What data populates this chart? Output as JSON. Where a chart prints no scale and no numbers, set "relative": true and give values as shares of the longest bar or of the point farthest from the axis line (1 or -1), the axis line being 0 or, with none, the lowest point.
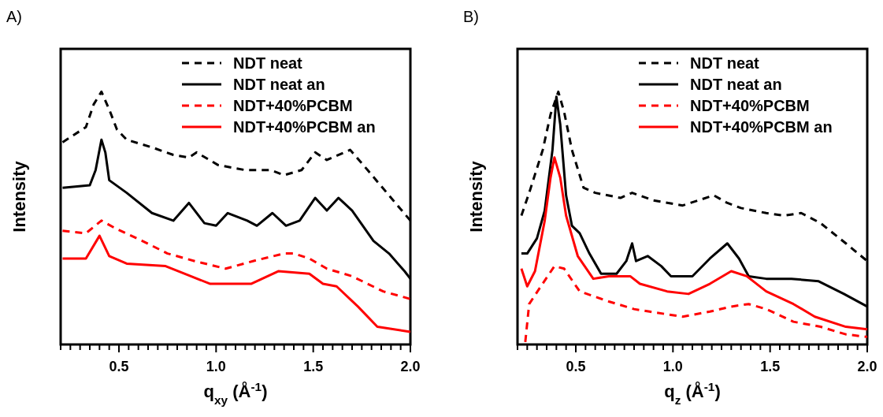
{
  "chart_data": [
    {
      "type": "line",
      "title": "A)",
      "xlabel": "q$_{xy}$ (Å$^{-1}$)",
      "ylabel": "Intensity",
      "relative": true,
      "legend": "top right",
      "xlim": [
        0.2,
        2.0
      ],
      "xticks": [
        {
          "value": 0.2,
          "label": null
        },
        {
          "value": 0.25,
          "label": null
        },
        {
          "value": 0.3,
          "label": null
        },
        {
          "value": 0.35,
          "label": null
        },
        {
          "value": 0.4,
          "label": null
        },
        {
          "value": 0.45,
          "label": null
        },
        {
          "value": 0.5,
          "label": "0.5"
        },
        {
          "value": 0.55,
          "label": null
        },
        {
          "value": 0.6,
          "label": null
        },
        {
          "value": 0.65,
          "label": null
        },
        {
          "value": 0.7,
          "label": null
        },
        {
          "value": 0.75,
          "label": null
        },
        {
          "value": 0.8,
          "label": null
        },
        {
          "value": 0.85,
          "label": null
        },
        {
          "value": 0.9,
          "label": null
        },
        {
          "value": 0.95,
          "label": null
        },
        {
          "value": 1.0,
          "label": "1.0"
        },
        {
          "value": 1.05,
          "label": null
        },
        {
          "value": 1.1,
          "label": null
        },
        {
          "value": 1.15,
          "label": null
        },
        {
          "value": 1.2,
          "label": null
        },
        {
          "value": 1.25,
          "label": null
        },
        {
          "value": 1.3,
          "label": null
        },
        {
          "value": 1.35,
          "label": null
        },
        {
          "value": 1.4,
          "label": null
        },
        {
          "value": 1.45,
          "label": null
        },
        {
          "value": 1.5,
          "label": "1.5"
        },
        {
          "value": 1.55,
          "label": null
        },
        {
          "value": 1.6,
          "label": null
        },
        {
          "value": 1.65,
          "label": null
        },
        {
          "value": 1.7,
          "label": null
        },
        {
          "value": 1.75,
          "label": null
        },
        {
          "value": 1.8,
          "label": null
        },
        {
          "value": 1.85,
          "label": null
        },
        {
          "value": 1.9,
          "label": null
        },
        {
          "value": 1.95,
          "label": null
        },
        {
          "value": 2.0,
          "label": "2.0"
        }
      ],
      "series": [
        {
          "name": "NDT neat",
          "color": "#000000",
          "line_style": "dashed",
          "x": [
            0.21,
            0.33,
            0.37,
            0.41,
            0.45,
            0.49,
            0.54,
            0.67,
            0.78,
            0.86,
            0.9,
            1.01,
            1.15,
            1.28,
            1.35,
            1.44,
            1.51,
            1.57,
            1.69,
            1.78,
            1.89,
            2.0
          ],
          "values": [
            0.8,
            0.86,
            0.95,
            1,
            0.93,
            0.85,
            0.81,
            0.78,
            0.75,
            0.74,
            0.76,
            0.71,
            0.69,
            0.69,
            0.67,
            0.69,
            0.76,
            0.73,
            0.77,
            0.69,
            0.59,
            0.49
          ]
        },
        {
          "name": "NDT neat an",
          "color": "#000000",
          "line_style": "solid",
          "x": [
            0.21,
            0.35,
            0.38,
            0.41,
            0.43,
            0.45,
            0.54,
            0.67,
            0.78,
            0.86,
            0.94,
            1.0,
            1.06,
            1.16,
            1.21,
            1.29,
            1.36,
            1.43,
            1.51,
            1.57,
            1.63,
            1.7,
            1.81,
            1.89,
            1.97,
            2.0
          ],
          "values": [
            0.62,
            0.63,
            0.69,
            0.81,
            0.76,
            0.65,
            0.6,
            0.52,
            0.49,
            0.56,
            0.48,
            0.47,
            0.52,
            0.49,
            0.47,
            0.52,
            0.47,
            0.49,
            0.58,
            0.53,
            0.58,
            0.53,
            0.41,
            0.36,
            0.29,
            0.26
          ]
        },
        {
          "name": "NDT+40%PCBM",
          "color": "#ff0000",
          "line_style": "dashed",
          "x": [
            0.21,
            0.33,
            0.41,
            0.48,
            0.62,
            0.75,
            0.89,
            1.05,
            1.19,
            1.35,
            1.4,
            1.48,
            1.57,
            1.7,
            1.86,
            2.0
          ],
          "values": [
            0.45,
            0.44,
            0.49,
            0.46,
            0.41,
            0.36,
            0.33,
            0.3,
            0.33,
            0.36,
            0.36,
            0.34,
            0.3,
            0.27,
            0.21,
            0.18
          ]
        },
        {
          "name": "NDT+40%PCBM an",
          "color": "#ff0000",
          "line_style": "solid",
          "x": [
            0.21,
            0.33,
            0.4,
            0.45,
            0.54,
            0.74,
            0.87,
            0.97,
            1.08,
            1.18,
            1.32,
            1.48,
            1.55,
            1.62,
            1.73,
            1.83,
            2.0
          ],
          "values": [
            0.34,
            0.34,
            0.43,
            0.35,
            0.32,
            0.31,
            0.27,
            0.24,
            0.24,
            0.24,
            0.29,
            0.28,
            0.24,
            0.23,
            0.15,
            0.07,
            0.05
          ]
        }
      ]
    },
    {
      "type": "line",
      "title": "B)",
      "xlabel": "q$_{z}$ (Å$^{-1}$)",
      "ylabel": "Intensity",
      "relative": true,
      "legend": "top right",
      "xlim": [
        0.2,
        2.0
      ],
      "xticks": [
        {
          "value": 0.2,
          "label": null
        },
        {
          "value": 0.25,
          "label": null
        },
        {
          "value": 0.3,
          "label": null
        },
        {
          "value": 0.35,
          "label": null
        },
        {
          "value": 0.4,
          "label": null
        },
        {
          "value": 0.45,
          "label": null
        },
        {
          "value": 0.5,
          "label": "0.5"
        },
        {
          "value": 0.55,
          "label": null
        },
        {
          "value": 0.6,
          "label": null
        },
        {
          "value": 0.65,
          "label": null
        },
        {
          "value": 0.7,
          "label": null
        },
        {
          "value": 0.75,
          "label": null
        },
        {
          "value": 0.8,
          "label": null
        },
        {
          "value": 0.85,
          "label": null
        },
        {
          "value": 0.9,
          "label": null
        },
        {
          "value": 0.95,
          "label": null
        },
        {
          "value": 1.0,
          "label": "1.0"
        },
        {
          "value": 1.05,
          "label": null
        },
        {
          "value": 1.1,
          "label": null
        },
        {
          "value": 1.15,
          "label": null
        },
        {
          "value": 1.2,
          "label": null
        },
        {
          "value": 1.25,
          "label": null
        },
        {
          "value": 1.3,
          "label": null
        },
        {
          "value": 1.35,
          "label": null
        },
        {
          "value": 1.4,
          "label": null
        },
        {
          "value": 1.45,
          "label": null
        },
        {
          "value": 1.5,
          "label": "1.5"
        },
        {
          "value": 1.55,
          "label": null
        },
        {
          "value": 1.6,
          "label": null
        },
        {
          "value": 1.65,
          "label": null
        },
        {
          "value": 1.7,
          "label": null
        },
        {
          "value": 1.75,
          "label": null
        },
        {
          "value": 1.8,
          "label": null
        },
        {
          "value": 1.85,
          "label": null
        },
        {
          "value": 1.9,
          "label": null
        },
        {
          "value": 1.95,
          "label": null
        },
        {
          "value": 2.0,
          "label": "2.0"
        }
      ],
      "series": [
        {
          "name": "NDT neat",
          "color": "#000000",
          "line_style": "dashed",
          "x": [
            0.22,
            0.26,
            0.33,
            0.37,
            0.41,
            0.44,
            0.48,
            0.54,
            0.6,
            0.73,
            0.79,
            0.9,
            1.05,
            1.21,
            1.28,
            1.35,
            1.48,
            1.57,
            1.66,
            1.76,
            1.89,
            2.0
          ],
          "values": [
            0.51,
            0.6,
            0.77,
            0.91,
            1,
            0.92,
            0.77,
            0.62,
            0.6,
            0.58,
            0.6,
            0.57,
            0.55,
            0.59,
            0.56,
            0.54,
            0.52,
            0.51,
            0.52,
            0.48,
            0.4,
            0.33
          ]
        },
        {
          "name": "NDT neat an",
          "color": "#000000",
          "line_style": "solid",
          "x": [
            0.22,
            0.25,
            0.3,
            0.34,
            0.38,
            0.4,
            0.42,
            0.45,
            0.48,
            0.52,
            0.57,
            0.63,
            0.71,
            0.76,
            0.79,
            0.81,
            0.87,
            0.94,
            0.99,
            1.1,
            1.19,
            1.28,
            1.34,
            1.39,
            1.48,
            1.61,
            1.75,
            1.88,
            2.0
          ],
          "values": [
            0.36,
            0.36,
            0.42,
            0.53,
            0.77,
            0.98,
            0.87,
            0.59,
            0.47,
            0.44,
            0.36,
            0.28,
            0.28,
            0.33,
            0.4,
            0.33,
            0.35,
            0.31,
            0.27,
            0.27,
            0.34,
            0.4,
            0.34,
            0.27,
            0.26,
            0.26,
            0.25,
            0.2,
            0.15
          ]
        },
        {
          "name": "NDT+40%PCBM",
          "color": "#ff0000",
          "line_style": "dashed",
          "x": [
            0.24,
            0.26,
            0.32,
            0.39,
            0.44,
            0.52,
            0.67,
            0.8,
            0.88,
            1.05,
            1.19,
            1.3,
            1.39,
            1.48,
            1.62,
            1.76,
            1.89,
            2.0
          ],
          "values": [
            0.01,
            0.16,
            0.23,
            0.31,
            0.3,
            0.21,
            0.17,
            0.14,
            0.13,
            0.11,
            0.13,
            0.15,
            0.16,
            0.14,
            0.09,
            0.07,
            0.04,
            0.03
          ]
        },
        {
          "name": "NDT+40%PCBM an",
          "color": "#ff0000",
          "line_style": "solid",
          "x": [
            0.22,
            0.25,
            0.29,
            0.34,
            0.37,
            0.39,
            0.42,
            0.45,
            0.51,
            0.59,
            0.67,
            0.78,
            0.83,
            0.97,
            1.08,
            1.19,
            1.3,
            1.38,
            1.48,
            1.62,
            1.73,
            1.89,
            2.0
          ],
          "values": [
            0.3,
            0.23,
            0.29,
            0.49,
            0.66,
            0.74,
            0.66,
            0.51,
            0.35,
            0.26,
            0.27,
            0.27,
            0.24,
            0.21,
            0.2,
            0.24,
            0.29,
            0.27,
            0.21,
            0.16,
            0.11,
            0.07,
            0.06
          ]
        }
      ]
    }
  ]
}
